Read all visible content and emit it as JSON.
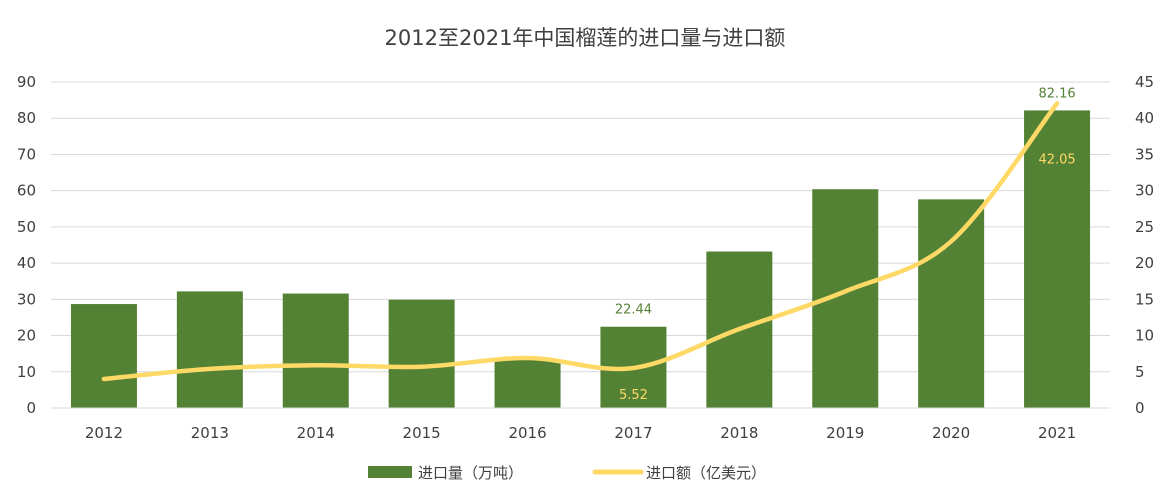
{
  "chart_data": {
    "type": "bar",
    "title": "2012至2021年中国榴莲的进口量与进口额",
    "categories": [
      "2012",
      "2013",
      "2014",
      "2015",
      "2016",
      "2017",
      "2018",
      "2019",
      "2020",
      "2021"
    ],
    "series": [
      {
        "name": "进口量（万吨）",
        "type": "bar",
        "axis": "left",
        "color": "#548235",
        "values": [
          28.7,
          32.2,
          31.6,
          29.9,
          13.3,
          22.44,
          43.2,
          60.4,
          57.6,
          82.16
        ]
      },
      {
        "name": "进口额（亿美元）",
        "type": "line",
        "axis": "right",
        "color": "#ffd966",
        "values": [
          4.0,
          5.4,
          5.9,
          5.7,
          6.9,
          5.52,
          10.9,
          16.1,
          23.0,
          42.05
        ]
      }
    ],
    "data_labels": [
      {
        "series": 0,
        "index": 5,
        "text": "22.44"
      },
      {
        "series": 0,
        "index": 9,
        "text": "82.16"
      },
      {
        "series": 1,
        "index": 5,
        "text": "5.52"
      },
      {
        "series": 1,
        "index": 9,
        "text": "42.05"
      }
    ],
    "ylim_left": [
      0,
      90
    ],
    "yticks_left": [
      "0",
      "10",
      "20",
      "30",
      "40",
      "50",
      "60",
      "70",
      "80",
      "90"
    ],
    "ylim_right": [
      0,
      45
    ],
    "yticks_right": [
      "0",
      "5",
      "10",
      "15",
      "20",
      "25",
      "30",
      "35",
      "40",
      "45"
    ],
    "grid": true,
    "legend_position": "bottom"
  }
}
